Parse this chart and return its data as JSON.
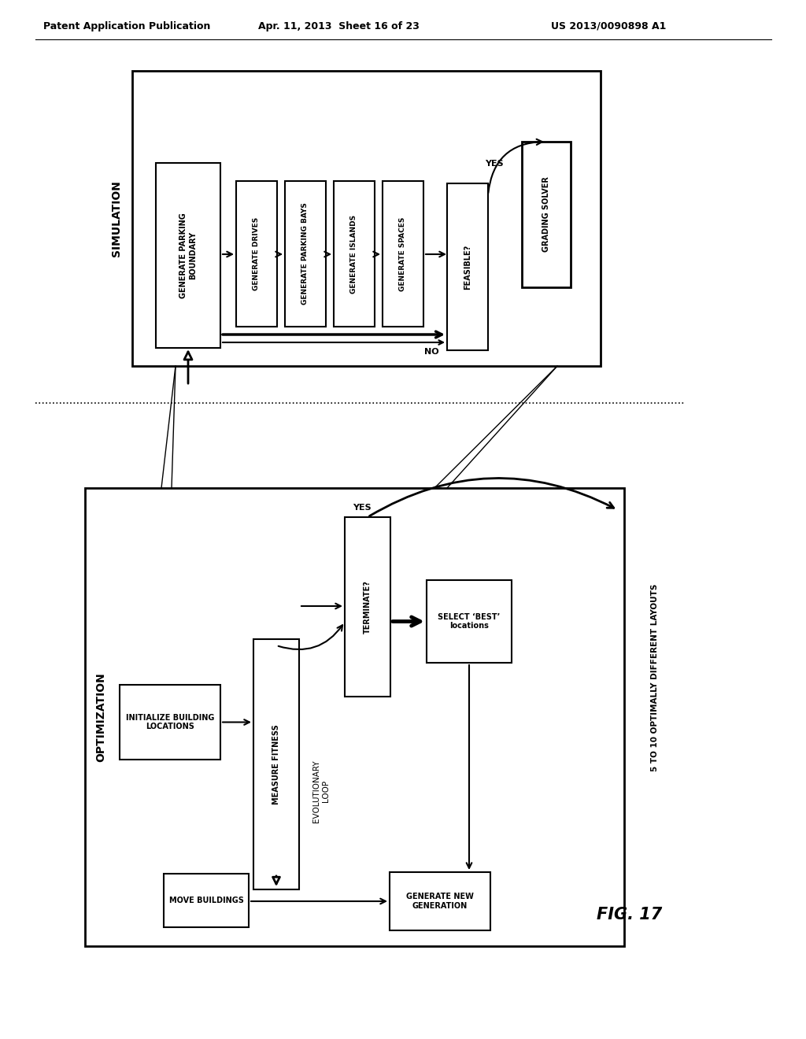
{
  "header_left": "Patent Application Publication",
  "header_mid": "Apr. 11, 2013  Sheet 16 of 23",
  "header_right": "US 2013/0090898 A1",
  "fig_label": "FIG. 17",
  "bg_color": "#ffffff",
  "sim_label": "SIMULATION",
  "opt_label": "OPTIMIZATION",
  "gpb_text": "GENERATE PARKING\nBOUNDARY",
  "gd_text": "GENERATE DRIVES",
  "gpbays_text": "GENERATE PARKING BAYS",
  "gi_text": "GENERATE ISLANDS",
  "gs_text": "GENERATE SPACES",
  "feasible_text": "FEASIBLE?",
  "grading_text": "GRADING SOLVER",
  "yes_sim": "YES",
  "no_sim": "NO",
  "ibl_text": "INITIALIZE BUILDING\nLOCATIONS",
  "mf_text": "MEASURE FITNESS",
  "term_text": "TERMINATE?",
  "sel_text": "SELECT ‘BEST’\nlocations",
  "evol_text": "EVOLUTIONARY\nLOOP",
  "mb_text": "MOVE BUILDINGS",
  "gng_text": "GENERATE NEW\nGENERATION",
  "yes_opt": "YES",
  "layouts_text": "5 TO 10 OPTIMALLY DIFFERENT LAYOUTS"
}
